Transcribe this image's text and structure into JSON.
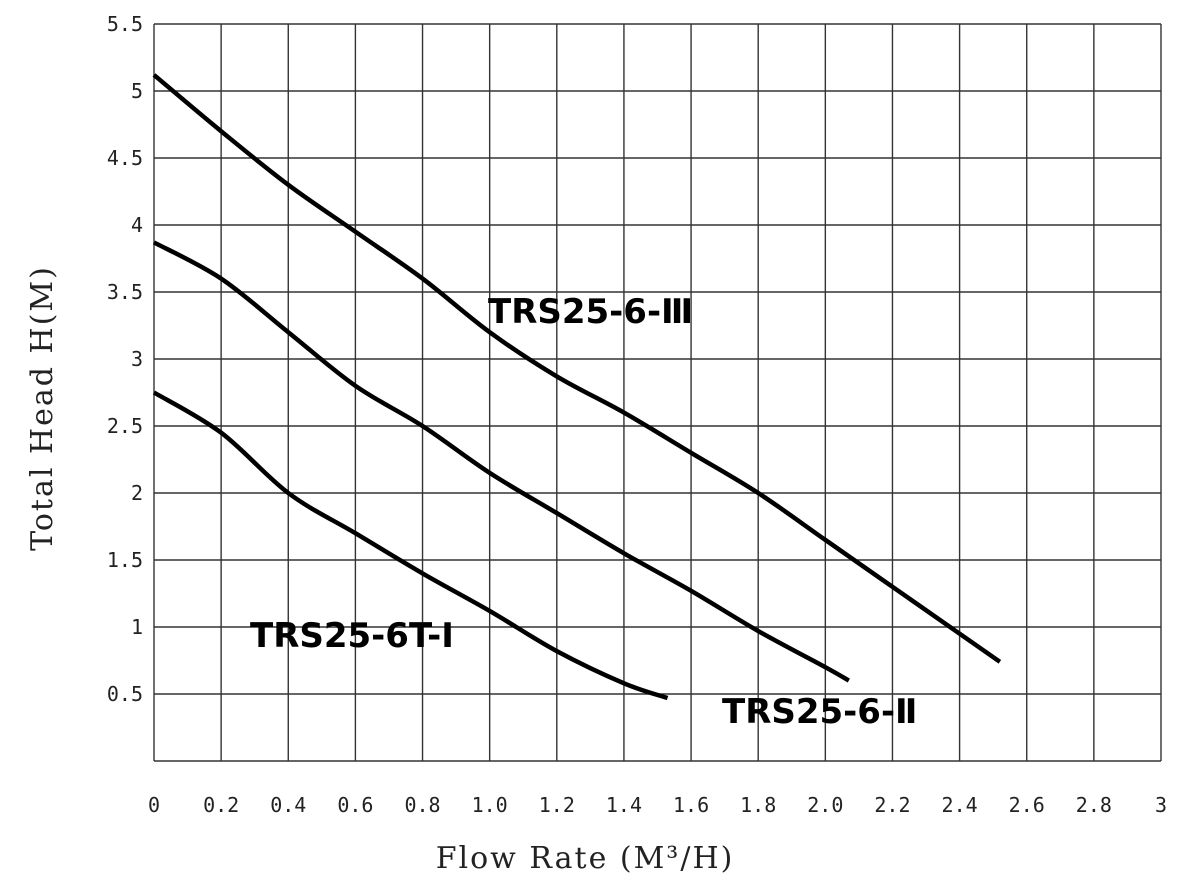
{
  "chart_data": {
    "type": "line",
    "xlabel": "Flow Rate (M³/H)",
    "ylabel": "Total Head H(M)",
    "xlim": [
      0,
      3
    ],
    "ylim": [
      0,
      5.5
    ],
    "x_ticks": [
      "0",
      "0.2",
      "0.4",
      "0.6",
      "0.8",
      "1.0",
      "1.2",
      "1.4",
      "1.6",
      "1.8",
      "2.0",
      "2.2",
      "2.4",
      "2.6",
      "2.8",
      "3"
    ],
    "y_ticks": [
      "0.5",
      "1",
      "1.5",
      "2",
      "2.5",
      "3",
      "3.5",
      "4",
      "4.5",
      "5",
      "5.5"
    ],
    "grid": true,
    "series": [
      {
        "name": "TRS25-6-Ⅲ",
        "x": [
          0,
          0.2,
          0.4,
          0.6,
          0.8,
          1.0,
          1.2,
          1.4,
          1.6,
          1.8,
          2.0,
          2.2,
          2.4,
          2.52
        ],
        "y": [
          5.12,
          4.7,
          4.3,
          3.95,
          3.6,
          3.2,
          2.87,
          2.6,
          2.3,
          2.0,
          1.65,
          1.3,
          0.95,
          0.74
        ]
      },
      {
        "name": "TRS25-6-Ⅱ",
        "x": [
          0,
          0.2,
          0.4,
          0.6,
          0.8,
          1.0,
          1.2,
          1.4,
          1.6,
          1.8,
          2.0,
          2.07
        ],
        "y": [
          3.87,
          3.6,
          3.2,
          2.8,
          2.5,
          2.15,
          1.85,
          1.55,
          1.27,
          0.97,
          0.7,
          0.6
        ]
      },
      {
        "name": "TRS25-6T-Ⅰ",
        "x": [
          0,
          0.2,
          0.4,
          0.6,
          0.8,
          1.0,
          1.2,
          1.4,
          1.53
        ],
        "y": [
          2.75,
          2.45,
          2.0,
          1.7,
          1.4,
          1.12,
          0.82,
          0.58,
          0.47
        ]
      }
    ]
  }
}
